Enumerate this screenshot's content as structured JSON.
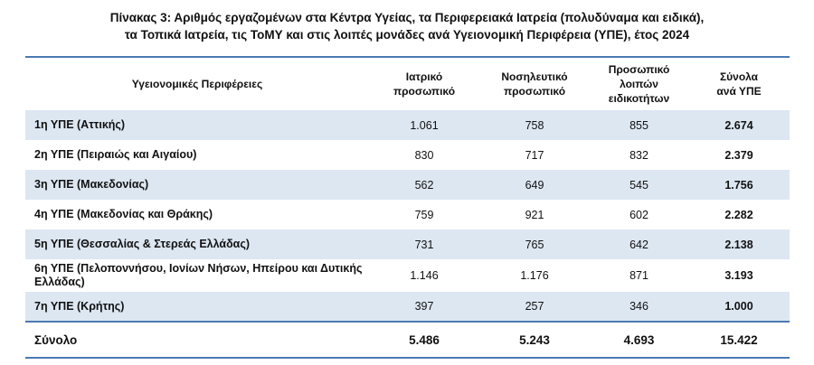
{
  "caption": {
    "line1": "Πίνακας 3: Αριθμός εργαζομένων στα Κέντρα Υγείας, τα Περιφερειακά Ιατρεία (πολυδύναμα και ειδικά),",
    "line2": "τα Τοπικά Ιατρεία, τις ΤοΜΥ και στις λοιπές μονάδες ανά Υγειονομική Περιφέρεια (ΥΠΕ), έτος 2024"
  },
  "table": {
    "headers": {
      "region": "Υγειονομικές Περιφέρειες",
      "medical": [
        "Ιατρικό",
        "προσωπικό"
      ],
      "nursing": [
        "Νοσηλευτικό",
        "προσωπικό"
      ],
      "other": [
        "Προσωπικό",
        "λοιπών",
        "ειδικοτήτων"
      ],
      "total": [
        "Σύνολα",
        "ανά ΥΠΕ"
      ]
    },
    "rows": [
      {
        "region": "1η ΥΠΕ (Αττικής)",
        "medical": "1.061",
        "nursing": "758",
        "other": "855",
        "total": "2.674"
      },
      {
        "region": "2η ΥΠΕ (Πειραιώς και Αιγαίου)",
        "medical": "830",
        "nursing": "717",
        "other": "832",
        "total": "2.379"
      },
      {
        "region": "3η ΥΠΕ (Μακεδονίας)",
        "medical": "562",
        "nursing": "649",
        "other": "545",
        "total": "1.756"
      },
      {
        "region": "4η ΥΠΕ (Μακεδονίας και Θράκης)",
        "medical": "759",
        "nursing": "921",
        "other": "602",
        "total": "2.282"
      },
      {
        "region": "5η ΥΠΕ (Θεσσαλίας & Στερεάς Ελλάδας)",
        "medical": "731",
        "nursing": "765",
        "other": "642",
        "total": "2.138"
      },
      {
        "region": "6η ΥΠΕ (Πελοποννήσου, Ιονίων Νήσων, Ηπείρου και Δυτικής Ελλάδας)",
        "medical": "1.146",
        "nursing": "1.176",
        "other": "871",
        "total": "3.193"
      },
      {
        "region": "7η ΥΠΕ (Κρήτης)",
        "medical": "397",
        "nursing": "257",
        "other": "346",
        "total": "1.000"
      }
    ],
    "sum": {
      "label": "Σύνολο",
      "medical": "5.486",
      "nursing": "5.243",
      "other": "4.693",
      "total": "15.422"
    }
  },
  "colors": {
    "rule": "#4a79b4",
    "row_shade": "#dde7f2"
  }
}
